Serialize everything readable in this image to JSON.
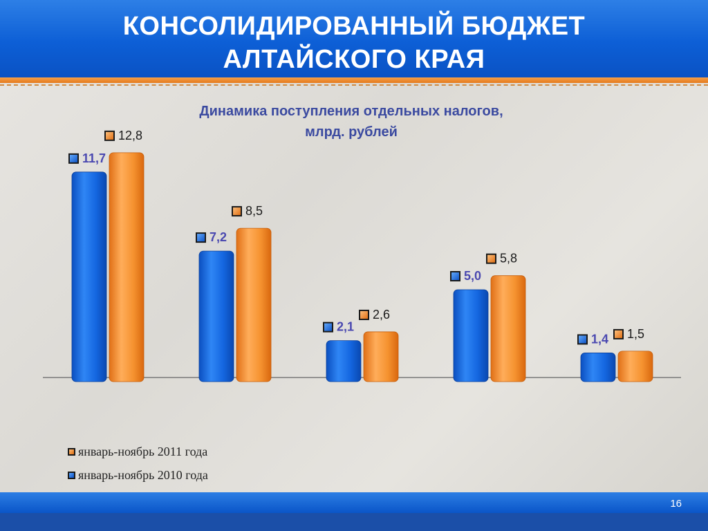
{
  "slide": {
    "title_line1": "КОНСОЛИДИРОВАННЫЙ БЮДЖЕТ",
    "title_line2": "АЛТАЙСКОГО КРАЯ",
    "page_number": "16"
  },
  "colors": {
    "header_blue": "#0d5fd6",
    "accent_orange": "#f08a2c",
    "series_2010": "#1466e0",
    "series_2011": "#f5922f",
    "label_2010": "#4a48b0",
    "label_2011": "#1a1a1a"
  },
  "chart_data": {
    "type": "bar",
    "title": "Динамика поступления отдельных налогов,",
    "title_line2": "млрд. рублей",
    "categories": [
      "",
      "",
      "",
      "",
      ""
    ],
    "series": [
      {
        "name": "январь-ноябрь 2010 года",
        "values": [
          11.7,
          7.2,
          2.1,
          5.0,
          1.4
        ],
        "labels": [
          "11,7",
          "7,2",
          "2,1",
          "5,0",
          "1,4"
        ]
      },
      {
        "name": "январь-ноябрь 2011 года",
        "values": [
          12.8,
          8.5,
          2.6,
          5.8,
          1.5
        ],
        "labels": [
          "12,8",
          "8,5",
          "2,6",
          "5,8",
          "1,5"
        ]
      }
    ],
    "ylim": [
      0,
      14
    ],
    "grid": false,
    "legend_position": "bottom-left"
  }
}
